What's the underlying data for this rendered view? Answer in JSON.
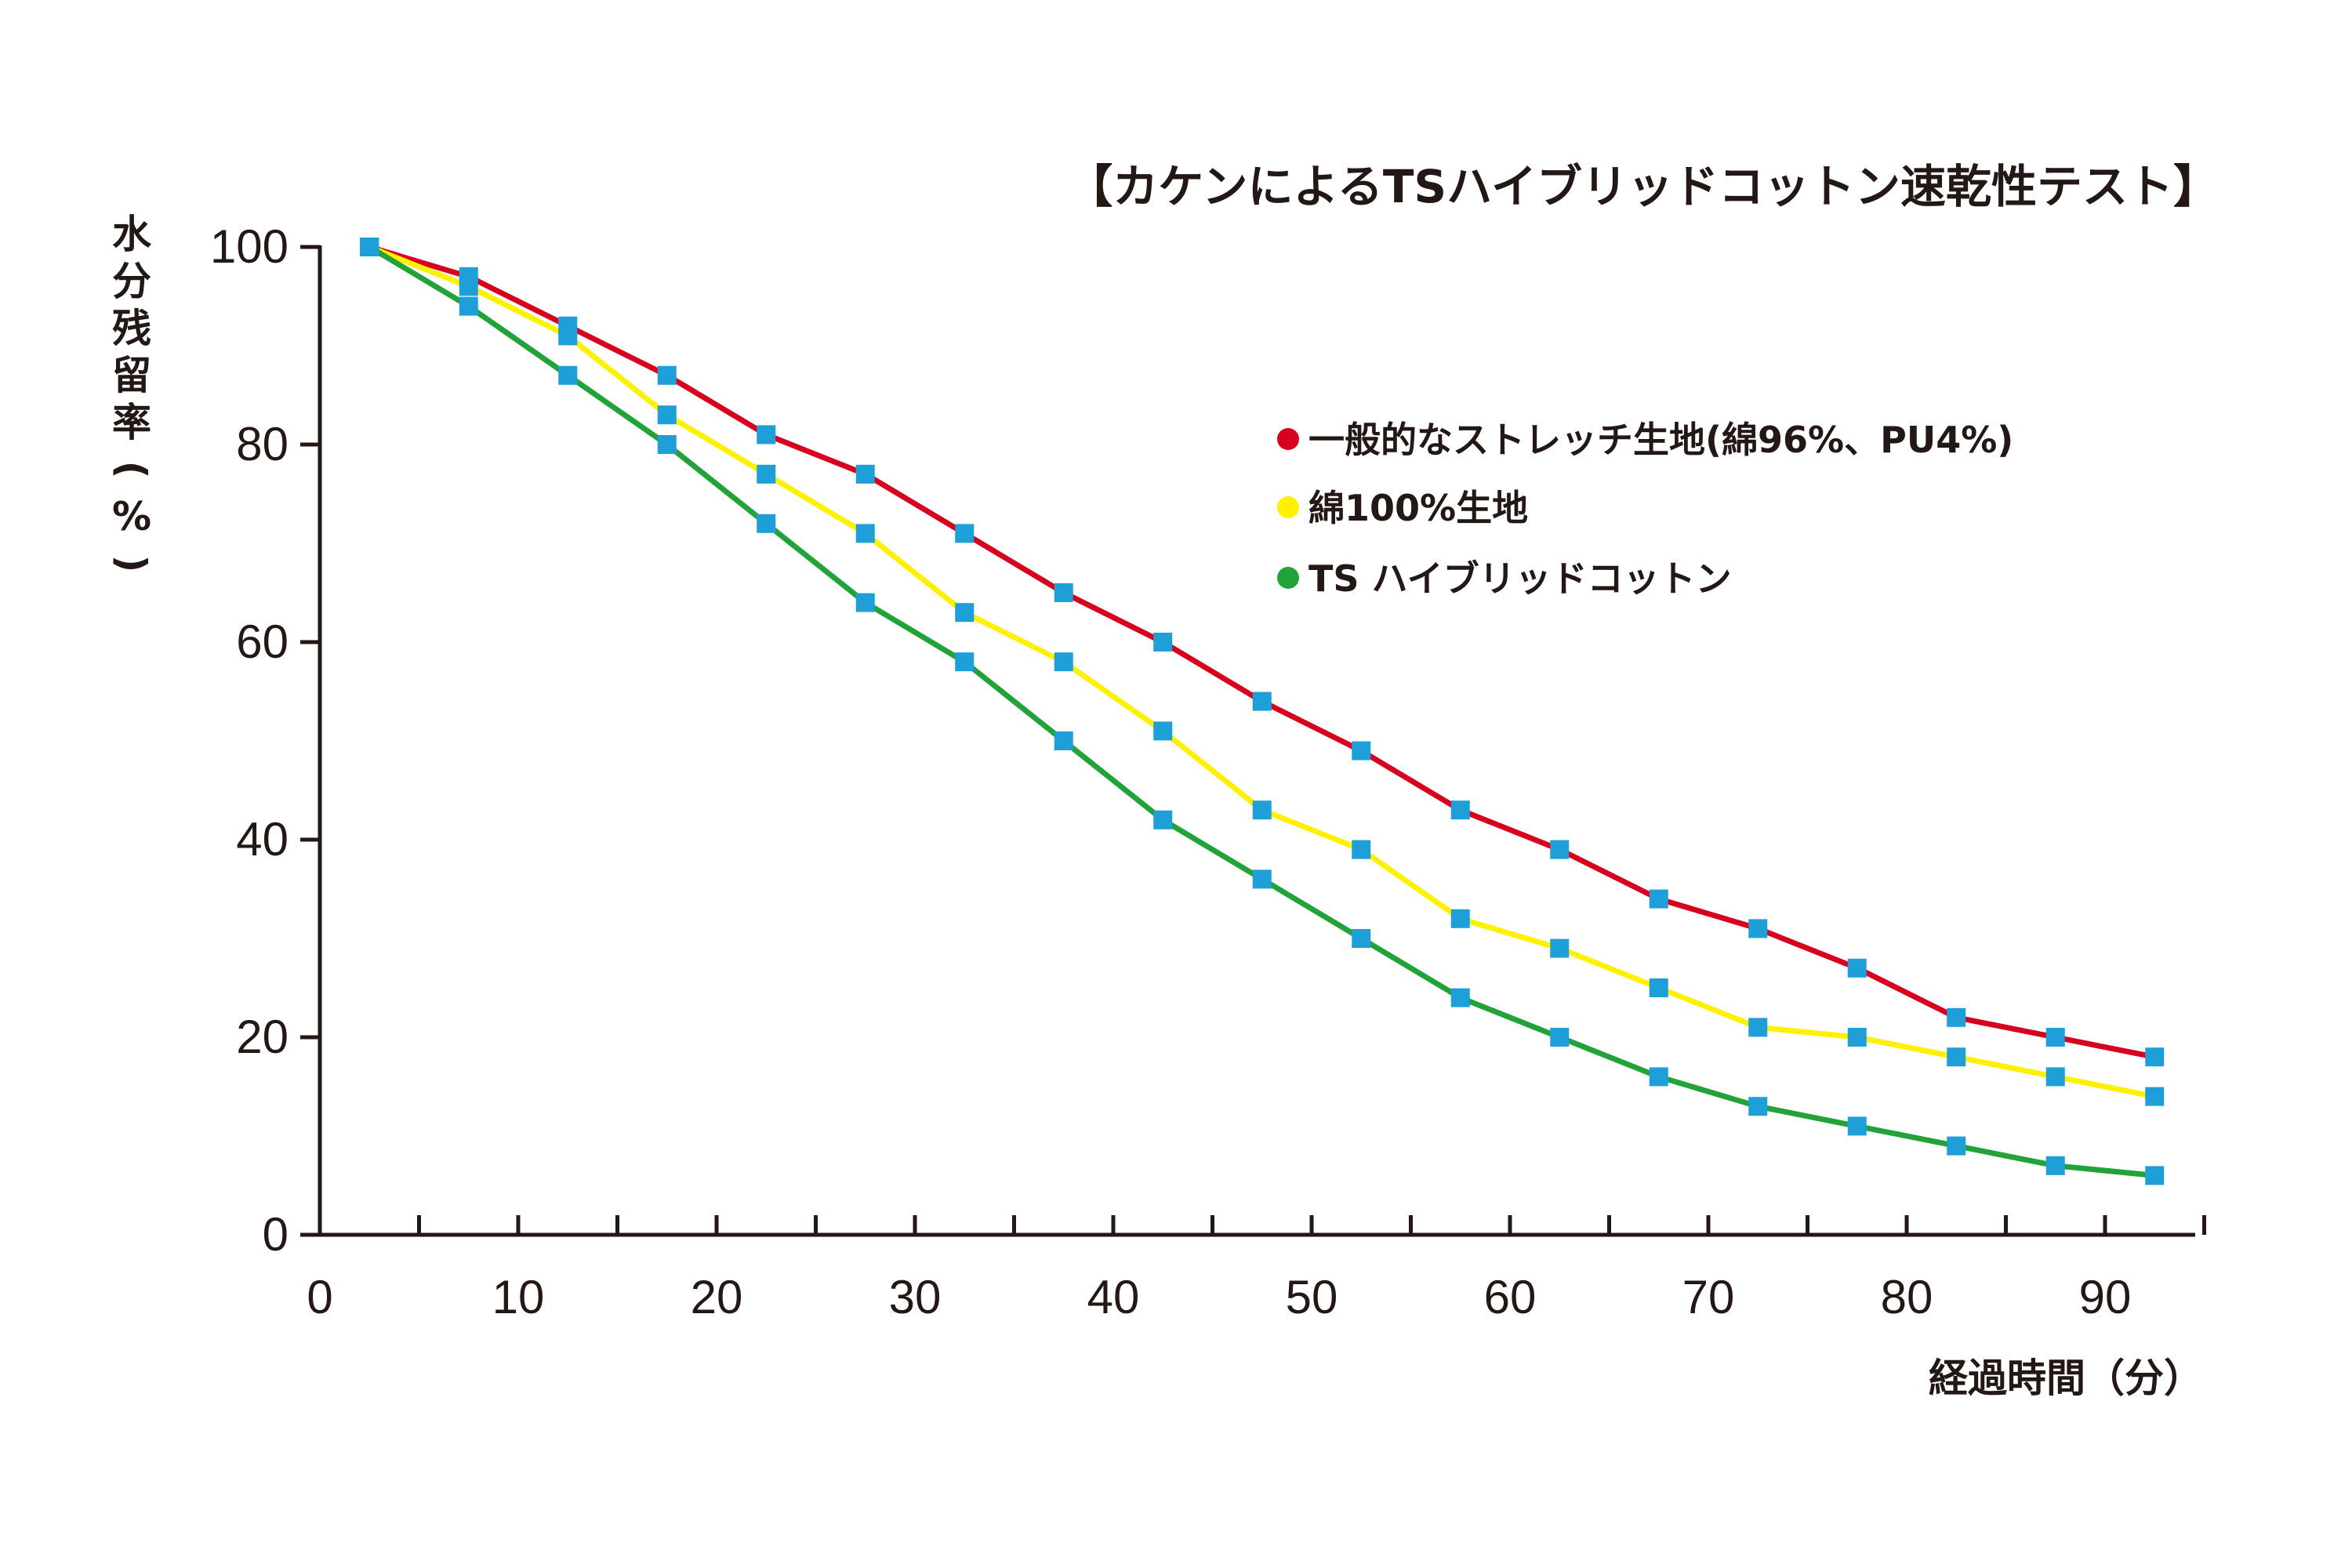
{
  "chart_data": {
    "type": "line",
    "title": "【カケンによるTSハイブリッドコットン速乾性テスト】",
    "ylabel": "水分残留率(%)",
    "xlabel": "経過時間（分）",
    "xlim": [
      0,
      95
    ],
    "ylim": [
      0,
      100
    ],
    "x_ticks": [
      0,
      10,
      20,
      30,
      40,
      50,
      60,
      70,
      80,
      90
    ],
    "x_tick_labels": [
      "0",
      "10",
      "20",
      "30",
      "40",
      "50",
      "60",
      "70",
      "80",
      "90"
    ],
    "y_ticks": [
      0,
      20,
      40,
      60,
      80,
      100
    ],
    "y_tick_labels": [
      "0",
      "20",
      "40",
      "60",
      "80",
      "100"
    ],
    "x": [
      2.5,
      7.5,
      12.5,
      17.5,
      22.5,
      27.5,
      32.5,
      37.5,
      42.5,
      47.5,
      52.5,
      57.5,
      62.5,
      67.5,
      72.5,
      77.5,
      82.5,
      87.5,
      92.5
    ],
    "marker_color": "#1e9fd8",
    "legend_position": "upper-right",
    "series": [
      {
        "name": "一般的なストレッチ生地(綿96%、PU4%)",
        "color": "#d7001d",
        "values": [
          100,
          97,
          92,
          87,
          81,
          77,
          71,
          65,
          60,
          54,
          49,
          43,
          39,
          34,
          31,
          27,
          22,
          20,
          18
        ]
      },
      {
        "name": "綿100%生地",
        "color": "#fff100",
        "values": [
          100,
          96,
          91,
          83,
          77,
          71,
          63,
          58,
          51,
          43,
          39,
          32,
          29,
          25,
          21,
          20,
          18,
          16,
          14
        ]
      },
      {
        "name": "TS ハイブリッドコットン",
        "color": "#22a33a",
        "values": [
          100,
          94,
          87,
          80,
          72,
          64,
          58,
          50,
          42,
          36,
          30,
          24,
          20,
          16,
          13,
          11,
          9,
          7,
          6
        ]
      }
    ]
  }
}
